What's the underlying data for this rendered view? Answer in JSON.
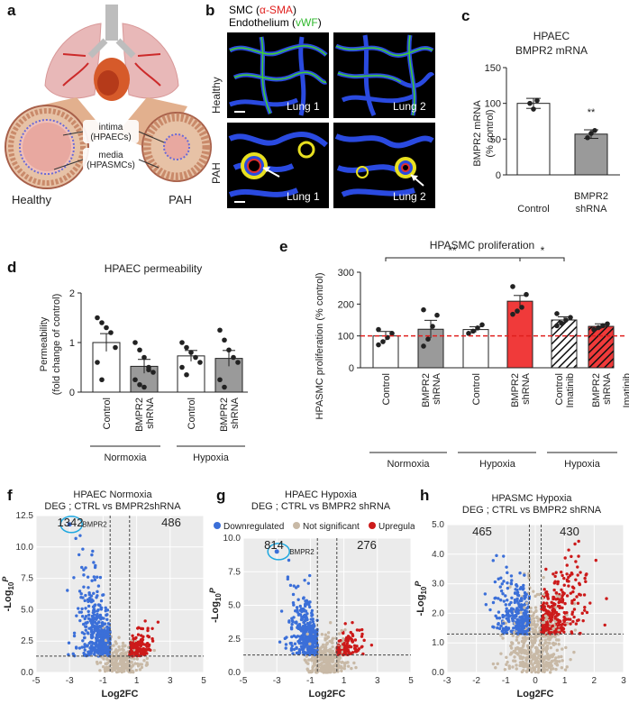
{
  "panels": {
    "a": {
      "letter": "a",
      "labels": {
        "intima": "intima",
        "hpaecs": "(HPAECs)",
        "media": "media",
        "hpasmcs": "(HPASMCs)",
        "healthy": "Healthy",
        "pah": "PAH"
      }
    },
    "b": {
      "letter": "b",
      "title_line1_prefix": "SMC (",
      "title_line1_marker": "α-SMA",
      "title_line1_suffix": ")",
      "title_line2_prefix": "Endothelium (",
      "title_line2_marker": "vWF",
      "title_line2_suffix": ")",
      "row_healthy": "Healthy",
      "row_pah": "PAH",
      "lung1": "Lung 1",
      "lung2": "Lung 2",
      "colors": {
        "sma": "#e0201e",
        "vwf": "#2fd12c",
        "bg": "#000000",
        "dapi": "#2040d8"
      }
    },
    "c": {
      "letter": "c",
      "title1": "HPAEC",
      "title2": "BMPR2 mRNA",
      "ylabel1": "BMPR2 mRNA",
      "ylabel2": "(% control)",
      "sig": "**",
      "chart_data": {
        "type": "bar",
        "categories": [
          "Control",
          "BMPR2 shRNA"
        ],
        "values": [
          100,
          57
        ],
        "ylim": [
          0,
          150
        ],
        "yticks": [
          0,
          50,
          100,
          150
        ],
        "ylabel": "BMPR2 mRNA (% control)",
        "title": "HPAEC BMPR2 mRNA",
        "points": [
          [
            100,
            92,
            104
          ],
          [
            52,
            58,
            62
          ]
        ]
      },
      "cat1": "Control",
      "cat2a": "BMPR2",
      "cat2b": "shRNA",
      "ticks": [
        "0",
        "50",
        "100",
        "150"
      ]
    },
    "d": {
      "letter": "d",
      "title": "HPAEC permeability",
      "ylabel1": "Permeability",
      "ylabel2": "(fold change of control)",
      "chart_data": {
        "type": "bar",
        "categories": [
          "Control Normoxia",
          "BMPR2 shRNA Normoxia",
          "Control Hypoxia",
          "BMPR2 shRNA Hypoxia"
        ],
        "values": [
          1.0,
          0.52,
          0.73,
          0.68
        ],
        "ylim": [
          0,
          2
        ],
        "yticks": [
          0,
          1,
          2
        ],
        "ylabel": "Permeability (fold change of control)",
        "title": "HPAEC permeability"
      },
      "cats": [
        "Control",
        "BMPR2",
        "shRNA",
        "Control",
        "BMPR2",
        "shRNA"
      ],
      "groups": [
        "Normoxia",
        "Hypoxia"
      ],
      "ticks": [
        "0",
        "1",
        "2"
      ]
    },
    "e": {
      "letter": "e",
      "title": "HPASMC proliferation",
      "ylabel": "HPASMC proliferation  (% control)",
      "sig1": "**",
      "sig2": "*",
      "chart_data": {
        "type": "bar",
        "categories": [
          "Control Normoxia",
          "BMPR2 shRNA Normoxia",
          "Control Hypoxia",
          "BMPR2 shRNA Hypoxia",
          "Control Imatinib Hypoxia",
          "BMPR2 shRNA Imatinib Hypoxia"
        ],
        "values": [
          100,
          121,
          120,
          209,
          150,
          130
        ],
        "ylim": [
          0,
          300
        ],
        "yticks": [
          0,
          100,
          200,
          300
        ],
        "reference_line": 100,
        "ylabel": "HPASMC proliferation (% control)",
        "title": "HPASMC proliferation"
      },
      "ticks": [
        "0",
        "100",
        "200",
        "300"
      ],
      "cats": [
        "Control",
        "BMPR2",
        "shRNA",
        "Control",
        "BMPR2",
        "shRNA",
        "Control",
        "Imatinib",
        "BMPR2",
        "shRNA",
        "Imatinib"
      ],
      "groups": [
        "Normoxia",
        "Hypoxia",
        "Hypoxia"
      ]
    },
    "f": {
      "letter": "f",
      "title1": "HPAEC Normoxia",
      "title2": "DEG ; CTRL vs  BMPR2shRNA",
      "down_count": "1342",
      "up_count": "486",
      "gene": "BMPR2",
      "xlabel": "Log2FC",
      "chart_data": {
        "type": "scatter",
        "xlim": [
          -5,
          5
        ],
        "ylim": [
          0,
          12.5
        ],
        "xticks": [
          -5,
          -3,
          -1,
          1,
          3,
          5
        ],
        "yticks": [
          0,
          2.5,
          5,
          7.5,
          10,
          12.5
        ],
        "highlight": {
          "gene": "BMPR2",
          "x": -3.0,
          "y": 11.8
        },
        "down": 1342,
        "up": 486
      },
      "xticks": [
        "-5",
        "-3",
        "-1",
        "1",
        "3",
        "5"
      ],
      "yticks": [
        "0.0",
        "2.5",
        "5.0",
        "7.5",
        "10.0",
        "12.5"
      ]
    },
    "g": {
      "letter": "g",
      "title1": "HPAEC Hypoxia",
      "title2": "DEG ; CTRL vs BMPR2 shRNA",
      "legend_down": "Downregulated",
      "legend_ns": "Not significant",
      "legend_up": "Upregulated",
      "down_count": "814",
      "up_count": "276",
      "gene": "BMPR2",
      "xlabel": "Log2FC",
      "chart_data": {
        "type": "scatter",
        "xlim": [
          -5,
          5
        ],
        "ylim": [
          0,
          10
        ],
        "xticks": [
          -5,
          -3,
          -1,
          1,
          3,
          5
        ],
        "yticks": [
          0,
          2.5,
          5,
          7.5,
          10
        ],
        "highlight": {
          "gene": "BMPR2",
          "x": -3.0,
          "y": 9.0
        },
        "down": 814,
        "up": 276
      },
      "xticks": [
        "-5",
        "-3",
        "-1",
        "1",
        "3",
        "5"
      ],
      "yticks": [
        "0.0",
        "2.5",
        "5.0",
        "7.5",
        "10.0"
      ]
    },
    "h": {
      "letter": "h",
      "title1": "HPASMC Hypoxia",
      "title2": "DEG ; CTRL vs BMPR2 shRNA",
      "down_count": "465",
      "up_count": "430",
      "xlabel": "Log2FC",
      "chart_data": {
        "type": "scatter",
        "xlim": [
          -3,
          3
        ],
        "ylim": [
          0,
          5
        ],
        "xticks": [
          -3,
          -2,
          -1,
          0,
          1,
          2,
          3
        ],
        "yticks": [
          0,
          1,
          2,
          3,
          4,
          5
        ],
        "down": 465,
        "up": 430
      },
      "xticks": [
        "-3",
        "-2",
        "-1",
        "0",
        "1",
        "2",
        "3"
      ],
      "yticks": [
        "0.0",
        "1.0",
        "2.0",
        "3.0",
        "4.0",
        "5.0"
      ]
    },
    "ylabel_volcano": "-Log",
    "colors": {
      "down": "#3b6fd8",
      "ns": "#c8b9a6",
      "up": "#cc1a1a",
      "bar_grey": "#9a9a9a",
      "bar_red": "#f03a3a",
      "ref_line": "#e0201e",
      "circle": "#20a8e0"
    }
  }
}
